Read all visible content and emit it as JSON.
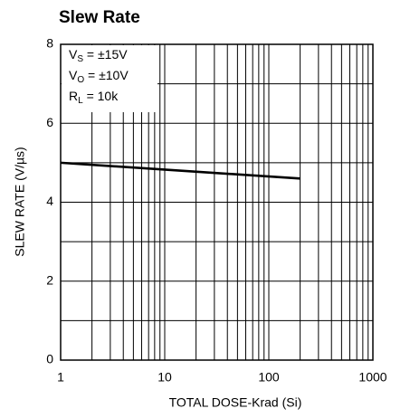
{
  "chart_data": {
    "type": "line",
    "title": "Slew Rate",
    "xlabel": "TOTAL DOSE-Krad (Si)",
    "ylabel": "SLEW RATE (V/µs)",
    "xscale": "log",
    "xlim": [
      1,
      1000
    ],
    "xticks": [
      1,
      10,
      100,
      1000
    ],
    "xminorticks": [
      2,
      3,
      4,
      5,
      6,
      7,
      8,
      9,
      20,
      30,
      40,
      50,
      60,
      70,
      80,
      90,
      200,
      300,
      400,
      500,
      600,
      700,
      800,
      900
    ],
    "ylim": [
      0,
      8
    ],
    "yticks": [
      0,
      2,
      4,
      6,
      8
    ],
    "yminorticks": [
      1,
      3,
      5,
      7
    ],
    "grid": true,
    "annotations": [
      {
        "base": "V",
        "sub": "S",
        "tail": " = ±15V"
      },
      {
        "base": "V",
        "sub": "O",
        "tail": " = ±10V"
      },
      {
        "base": "R",
        "sub": "L",
        "tail": " = 10k"
      }
    ],
    "x": [
      1,
      200
    ],
    "series": [
      {
        "color": "#000000",
        "values": [
          5.0,
          4.6
        ]
      }
    ]
  }
}
